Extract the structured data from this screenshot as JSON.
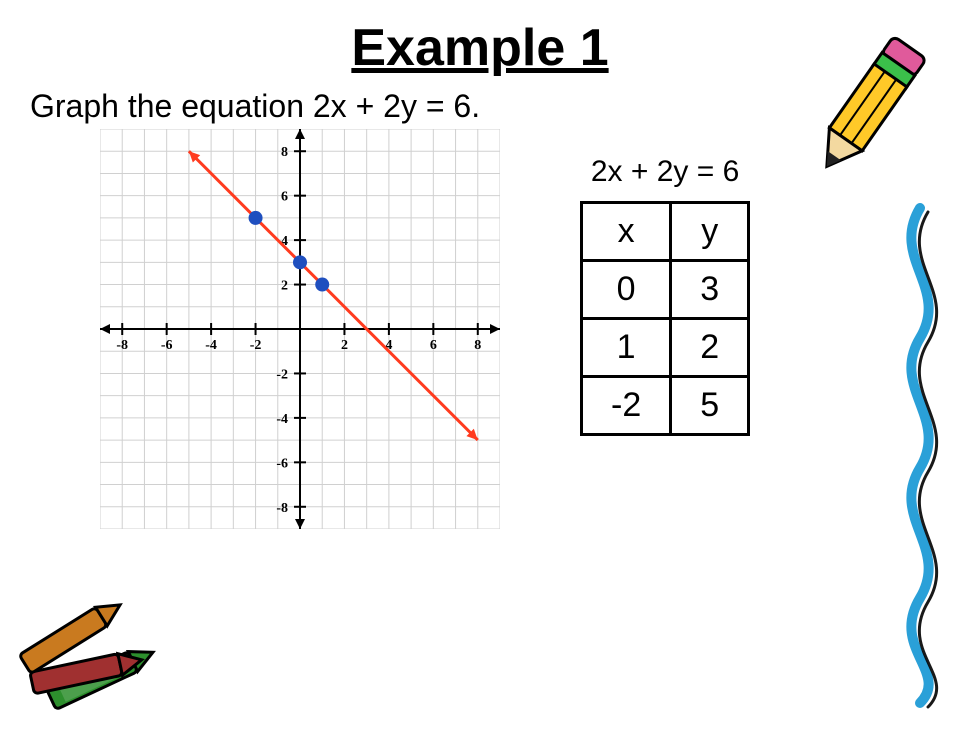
{
  "title": "Example 1",
  "prompt": "Graph the equation 2x + 2y = 6.",
  "equation_label": "2x + 2y = 6",
  "table": {
    "headers": [
      "x",
      "y"
    ],
    "rows": [
      [
        "0",
        "3"
      ],
      [
        "1",
        "2"
      ],
      [
        "-2",
        "5"
      ]
    ]
  },
  "chart": {
    "type": "scatter_with_line",
    "xlim": [
      -9,
      9
    ],
    "ylim": [
      -9,
      9
    ],
    "x_ticks": [
      -8,
      -6,
      -4,
      -2,
      2,
      4,
      6,
      8
    ],
    "y_ticks": [
      -8,
      -6,
      -4,
      -2,
      2,
      4,
      6,
      8
    ],
    "x_tick_labels": [
      "-8",
      "-6",
      "-4",
      "-2",
      "2",
      "4",
      "6",
      "8"
    ],
    "y_tick_labels": [
      "-8",
      "-6",
      "-4",
      "-2",
      "2",
      "4",
      "6",
      "8"
    ],
    "grid_step": 1,
    "grid_color": "#d0d0d0",
    "axis_color": "#000000",
    "background_color": "#ffffff",
    "tick_label_fontsize": 14,
    "tick_label_font": "serif",
    "line": {
      "x1": -5,
      "y1": 8,
      "x2": 8,
      "y2": -5,
      "color": "#ff3b1f",
      "width": 3,
      "arrowheads": true
    },
    "points": [
      {
        "x": -2,
        "y": 5
      },
      {
        "x": 0,
        "y": 3
      },
      {
        "x": 1,
        "y": 2
      }
    ],
    "point_color": "#1f4fbf",
    "point_radius": 7
  },
  "decorations": {
    "pencil_color_body": "#ffc928",
    "pencil_color_tip": "#f3d9a0",
    "pencil_color_lead": "#222",
    "pencil_eraser": "#e05a9b",
    "pencil_ferrule": "#3bbf4a",
    "crayon1": "#2d8f2d",
    "crayon2": "#a03030",
    "crayon3": "#c97a1f",
    "squiggle_color": "#2aa0d8"
  }
}
